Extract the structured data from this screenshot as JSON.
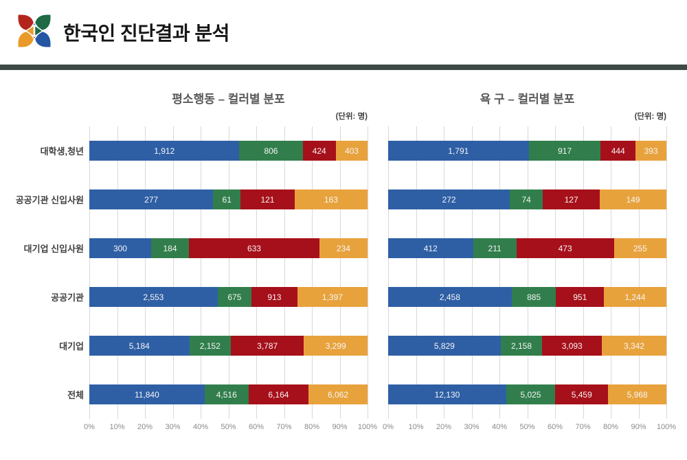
{
  "page": {
    "title": "한국인 진단결과 분석"
  },
  "header": {
    "logo_colors": {
      "red": "#b3251c",
      "green": "#1e6b45",
      "orange": "#e99a28",
      "blue": "#2456a4"
    },
    "divider_color": "#3d4945"
  },
  "palette": {
    "blue": "#2e5fa5",
    "green": "#317e4c",
    "red": "#a6101a",
    "orange": "#e8a23c"
  },
  "chart_data": [
    {
      "type": "bar",
      "variant": "horizontal-stacked-100pct",
      "title": "평소행동 – 컬러별 분포",
      "unit": "(단위: 명)",
      "categories": [
        "대학생,청년",
        "공공기관 신입사원",
        "대기업 신입사원",
        "공공기관",
        "대기업",
        "전체"
      ],
      "series": [
        {
          "name": "blue",
          "color": "#2e5fa5",
          "values": [
            1912,
            277,
            300,
            2553,
            5184,
            11840
          ]
        },
        {
          "name": "green",
          "color": "#317e4c",
          "values": [
            806,
            61,
            184,
            675,
            2152,
            4516
          ]
        },
        {
          "name": "red",
          "color": "#a6101a",
          "values": [
            424,
            121,
            633,
            913,
            3787,
            6164
          ]
        },
        {
          "name": "orange",
          "color": "#e8a23c",
          "values": [
            403,
            163,
            234,
            1397,
            3299,
            6062
          ]
        }
      ],
      "x_axis": {
        "ticks": [
          "0%",
          "10%",
          "20%",
          "30%",
          "40%",
          "50%",
          "60%",
          "70%",
          "80%",
          "90%",
          "100%"
        ],
        "min": 0,
        "max": 100,
        "grid": true
      },
      "legend": "none",
      "show_category_labels": true
    },
    {
      "type": "bar",
      "variant": "horizontal-stacked-100pct",
      "title": "욕 구 – 컬러별 분포",
      "unit": "(단위: 명)",
      "categories": [
        "대학생,청년",
        "공공기관 신입사원",
        "대기업 신입사원",
        "공공기관",
        "대기업",
        "전체"
      ],
      "series": [
        {
          "name": "blue",
          "color": "#2e5fa5",
          "values": [
            1791,
            272,
            412,
            2458,
            5829,
            12130
          ]
        },
        {
          "name": "green",
          "color": "#317e4c",
          "values": [
            917,
            74,
            211,
            885,
            2158,
            5025
          ]
        },
        {
          "name": "red",
          "color": "#a6101a",
          "values": [
            444,
            127,
            473,
            951,
            3093,
            5459
          ]
        },
        {
          "name": "orange",
          "color": "#e8a23c",
          "values": [
            393,
            149,
            255,
            1244,
            3342,
            5968
          ]
        }
      ],
      "x_axis": {
        "ticks": [
          "0%",
          "10%",
          "20%",
          "30%",
          "40%",
          "50%",
          "60%",
          "70%",
          "80%",
          "90%",
          "100%"
        ],
        "min": 0,
        "max": 100,
        "grid": true
      },
      "legend": "none",
      "show_category_labels": false
    }
  ]
}
